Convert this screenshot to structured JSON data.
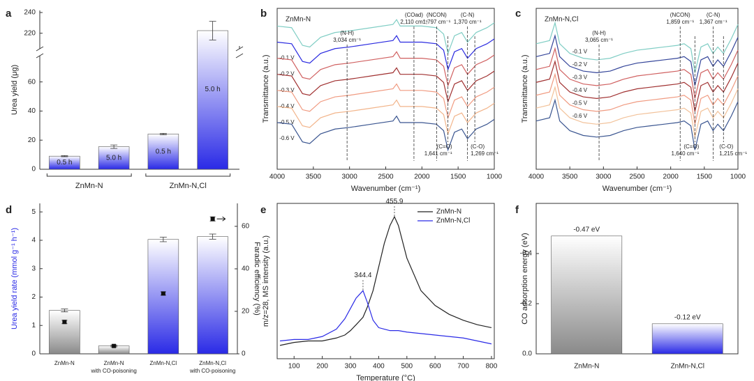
{
  "chart_data": [
    {
      "type": "bar",
      "panel": "a",
      "ylabel": "Urea yield (μg)",
      "categories": [
        "0.5 h",
        "5.0 h",
        "0.5 h",
        "5.0 h"
      ],
      "groups": [
        "ZnMn-N",
        "ZnMn-N,Cl"
      ],
      "values": [
        9.0,
        15.5,
        24.2,
        222.5
      ],
      "errors": [
        0.4,
        1.2,
        0.5,
        9.0
      ],
      "color": "#2a2ae6",
      "ylim": [
        0,
        242
      ],
      "y_break": [
        78,
        205
      ],
      "yticks": [
        0,
        20,
        40,
        60,
        220,
        240
      ]
    },
    {
      "type": "line",
      "panel": "b",
      "title": "ZnMn-N",
      "xlabel": "Wavenumber (cm⁻¹)",
      "ylabel": "Transmittance (a.u.)",
      "x": [
        4000,
        3800,
        3650,
        3550,
        3400,
        3200,
        3000,
        2700,
        2400,
        2350,
        2300,
        2000,
        1800,
        1700,
        1640,
        1550,
        1450,
        1370,
        1250,
        1100,
        1000
      ],
      "series": [
        {
          "name": null,
          "color": "#7fcdc4",
          "values": [
            8.9,
            8.8,
            7.7,
            7.6,
            8.2,
            8.5,
            8.6,
            8.8,
            9.0,
            9.3,
            8.9,
            8.9,
            8.8,
            8.4,
            7.2,
            8.3,
            8.5,
            7.9,
            8.5,
            8.8,
            9.1
          ]
        },
        {
          "name": "-0.1 V",
          "color": "#2a2ae0",
          "values": [
            7.9,
            7.8,
            6.7,
            6.6,
            7.2,
            7.5,
            7.6,
            7.8,
            8.0,
            8.3,
            7.9,
            7.9,
            7.8,
            7.4,
            6.2,
            7.3,
            7.5,
            6.9,
            7.5,
            7.8,
            8.1
          ]
        },
        {
          "name": "-0.2 V",
          "color": "#d06060",
          "values": [
            6.9,
            6.8,
            5.7,
            5.6,
            6.2,
            6.5,
            6.6,
            6.8,
            7.0,
            7.3,
            6.9,
            6.9,
            6.8,
            6.4,
            5.2,
            6.3,
            6.5,
            5.9,
            6.5,
            6.8,
            7.1
          ]
        },
        {
          "name": "-0.3 V",
          "color": "#a03030",
          "values": [
            5.9,
            5.8,
            4.7,
            4.6,
            5.2,
            5.5,
            5.6,
            5.8,
            6.0,
            6.3,
            5.9,
            5.9,
            5.8,
            5.4,
            4.2,
            5.3,
            5.5,
            4.9,
            5.5,
            5.8,
            6.1
          ]
        },
        {
          "name": "-0.4 V",
          "color": "#f09a80",
          "values": [
            4.9,
            4.8,
            3.7,
            3.6,
            4.2,
            4.5,
            4.6,
            4.8,
            5.0,
            5.3,
            4.9,
            4.9,
            4.8,
            4.4,
            3.2,
            4.3,
            4.5,
            3.9,
            4.5,
            4.8,
            5.1
          ]
        },
        {
          "name": "-0.5 V",
          "color": "#f2b48a",
          "values": [
            3.9,
            3.8,
            2.7,
            2.6,
            3.2,
            3.5,
            3.6,
            3.8,
            4.0,
            4.3,
            3.9,
            3.9,
            3.8,
            3.4,
            2.2,
            3.3,
            3.5,
            2.9,
            3.5,
            3.8,
            4.1
          ]
        },
        {
          "name": "-0.6 V",
          "color": "#3a5590",
          "values": [
            2.9,
            2.8,
            1.7,
            1.6,
            2.2,
            2.5,
            2.6,
            2.8,
            3.0,
            3.3,
            2.9,
            2.9,
            2.8,
            2.4,
            1.2,
            2.3,
            2.5,
            1.9,
            2.5,
            2.8,
            3.1
          ]
        }
      ],
      "xlim": [
        4000,
        1000
      ],
      "xticks": [
        4000,
        3500,
        3000,
        2500,
        2000,
        1500,
        1000
      ],
      "ylim": [
        0,
        10
      ],
      "top_annotations": [
        {
          "label": "(N-H)",
          "text": "3,034 cm⁻¹",
          "x": 3034
        },
        {
          "label": "(COad)",
          "text": "2,110 cm⁻¹",
          "x": 2110
        },
        {
          "label": "(NCON)",
          "text": "1,797 cm⁻¹",
          "x": 1797
        },
        {
          "label": "(C-N)",
          "text": "1,370 cm⁻¹",
          "x": 1370
        }
      ],
      "bottom_annotations": [
        {
          "label": "(C=O)",
          "text": "1,641 cm⁻¹",
          "x": 1641
        },
        {
          "label": "(C-O)",
          "text": "1,269 cm⁻¹",
          "x": 1269
        }
      ]
    },
    {
      "type": "line",
      "panel": "c",
      "title": "ZnMn-N,Cl",
      "xlabel": "Wavenumber (cm⁻¹)",
      "ylabel": "Transmittance (a.u.)",
      "x": [
        4000,
        3800,
        3720,
        3650,
        3500,
        3300,
        3100,
        2900,
        2700,
        2500,
        2300,
        2100,
        1900,
        1800,
        1700,
        1640,
        1550,
        1450,
        1370,
        1300,
        1215,
        1100,
        1000
      ],
      "series": [
        {
          "name": null,
          "color": "#7fcdc4",
          "values": [
            7.8,
            8.0,
            9.1,
            7.8,
            7.2,
            6.9,
            6.8,
            6.9,
            7.2,
            7.4,
            7.5,
            7.6,
            7.7,
            7.8,
            7.5,
            6.0,
            7.6,
            7.8,
            7.2,
            7.6,
            7.2,
            8.1,
            9.0
          ]
        },
        {
          "name": "-0.1 V",
          "color": "#334499",
          "values": [
            7.0,
            7.2,
            8.3,
            7.0,
            6.4,
            6.1,
            6.0,
            6.1,
            6.4,
            6.6,
            6.7,
            6.8,
            6.9,
            7.0,
            6.7,
            5.2,
            6.8,
            7.0,
            6.4,
            6.8,
            6.4,
            7.3,
            8.2
          ]
        },
        {
          "name": "-0.2 V",
          "color": "#d06060",
          "values": [
            6.2,
            6.4,
            7.5,
            6.2,
            5.6,
            5.3,
            5.2,
            5.3,
            5.6,
            5.8,
            5.9,
            6.0,
            6.1,
            6.2,
            5.9,
            4.4,
            6.0,
            6.2,
            5.6,
            6.0,
            5.6,
            6.5,
            7.4
          ]
        },
        {
          "name": "-0.3 V",
          "color": "#a03030",
          "values": [
            5.4,
            5.6,
            6.7,
            5.4,
            4.8,
            4.5,
            4.4,
            4.5,
            4.8,
            5.0,
            5.1,
            5.2,
            5.3,
            5.4,
            5.1,
            3.6,
            5.2,
            5.4,
            4.8,
            5.2,
            4.8,
            5.7,
            6.6
          ]
        },
        {
          "name": "-0.4 V",
          "color": "#f09a80",
          "values": [
            4.6,
            4.8,
            5.9,
            4.6,
            4.0,
            3.7,
            3.6,
            3.7,
            4.0,
            4.2,
            4.3,
            4.4,
            4.5,
            4.6,
            4.3,
            2.8,
            4.4,
            4.6,
            4.0,
            4.4,
            4.0,
            4.9,
            5.8
          ]
        },
        {
          "name": "-0.5 V",
          "color": "#f2c29a",
          "values": [
            3.8,
            4.0,
            5.1,
            3.8,
            3.2,
            2.9,
            2.8,
            2.9,
            3.2,
            3.4,
            3.5,
            3.6,
            3.7,
            3.8,
            3.5,
            2.0,
            3.6,
            3.8,
            3.2,
            3.6,
            3.2,
            4.1,
            5.0
          ]
        },
        {
          "name": "-0.6 V",
          "color": "#3a5590",
          "values": [
            3.0,
            3.2,
            4.3,
            3.0,
            2.4,
            2.1,
            2.0,
            2.1,
            2.4,
            2.6,
            2.7,
            2.8,
            2.9,
            3.0,
            2.7,
            1.2,
            2.8,
            3.0,
            2.4,
            2.8,
            2.4,
            3.3,
            4.2
          ]
        }
      ],
      "xlim": [
        4000,
        1000
      ],
      "xticks": [
        4000,
        3500,
        3000,
        2500,
        2000,
        1500,
        1000
      ],
      "ylim": [
        0,
        10
      ],
      "top_annotations": [
        {
          "label": "(N-H)",
          "text": "3,065 cm⁻¹",
          "x": 3065
        },
        {
          "label": "(NCON)",
          "text": "1,859 cm⁻¹",
          "x": 1859
        },
        {
          "label": "(C-N)",
          "text": "1,367 cm⁻¹",
          "x": 1367
        }
      ],
      "bottom_annotations": [
        {
          "label": "(C=O)",
          "text": "1,640 cm⁻¹",
          "x": 1640
        },
        {
          "label": "(C-O)",
          "text": "1,215 cm⁻¹",
          "x": 1215
        }
      ]
    },
    {
      "type": "bar",
      "panel": "d",
      "ylabel": "Urea yield rate (mmol g⁻¹ h⁻¹)",
      "ylabel_color": "#2a2ae6",
      "y2label": "Faradic efficiency (%)",
      "categories": [
        "ZnMn-N",
        [
          "ZnMn-N",
          "with CO-poisoning"
        ],
        "ZnMn-N,Cl",
        [
          "ZnMn-N,Cl",
          "with CO-poisoning"
        ]
      ],
      "values": [
        1.53,
        0.28,
        4.03,
        4.13
      ],
      "errors": [
        0.05,
        0.03,
        0.08,
        0.09
      ],
      "colors": [
        "#8a8a8a",
        "#8a8a8a",
        "#2a2ae6",
        "#2a2ae6"
      ],
      "ylim": [
        0,
        5.3
      ],
      "yticks": [
        0,
        1,
        2,
        3,
        4,
        5
      ],
      "points": {
        "axis": "y2",
        "color": "#111111",
        "values": [
          15.0,
          3.7,
          28.4,
          63.5
        ],
        "errors": [
          0.8,
          0.4,
          0.8,
          1.0
        ]
      },
      "y2lim": [
        0,
        70.8
      ],
      "y2ticks": [
        0,
        20,
        40,
        60
      ]
    },
    {
      "type": "line",
      "panel": "e",
      "xlabel": "Temperature (°C)",
      "ylabel": "m/z=28, MS intensity (a.u.)",
      "x": [
        50,
        100,
        150,
        200,
        250,
        280,
        300,
        320,
        344.4,
        360,
        380,
        400,
        420,
        440,
        455.9,
        470,
        500,
        550,
        600,
        650,
        700,
        750,
        800
      ],
      "series": [
        {
          "name": "ZnMn-N",
          "color": "#222222",
          "values": [
            0.9,
            1.1,
            1.2,
            1.2,
            1.4,
            1.6,
            1.9,
            2.3,
            2.8,
            3.5,
            4.6,
            6.2,
            7.8,
            9.0,
            9.6,
            9.0,
            6.8,
            4.6,
            3.6,
            3.0,
            2.6,
            2.3,
            2.1
          ]
        },
        {
          "name": "ZnMn-N,Cl",
          "color": "#2a2ae6",
          "values": [
            1.2,
            1.3,
            1.3,
            1.5,
            2.0,
            2.7,
            3.4,
            4.1,
            4.6,
            3.8,
            2.6,
            2.1,
            2.0,
            1.9,
            1.9,
            1.9,
            1.8,
            1.7,
            1.6,
            1.5,
            1.4,
            1.2,
            1.0
          ]
        }
      ],
      "xlim": [
        40,
        810
      ],
      "xticks": [
        100,
        200,
        300,
        400,
        500,
        600,
        700,
        800
      ],
      "ylim": [
        0,
        10.5
      ],
      "legend": "upper right",
      "annotations": [
        {
          "x": 455.9
        },
        {
          "x": 344.4
        }
      ]
    },
    {
      "type": "bar",
      "panel": "f",
      "ylabel": "CO adsorption energy (eV)",
      "categories": [
        "ZnMn-N",
        "ZnMn-N,Cl"
      ],
      "values": [
        -0.47,
        -0.12
      ],
      "value_labels": [
        "-0.47 eV",
        "-0.12 eV"
      ],
      "colors": [
        "#8a8a8a",
        "#2a2ae6"
      ],
      "ylim": [
        0,
        -0.6
      ],
      "yticks": [
        {
          "value": 0,
          "label": "0.0"
        },
        -0.2,
        -0.4
      ]
    }
  ]
}
